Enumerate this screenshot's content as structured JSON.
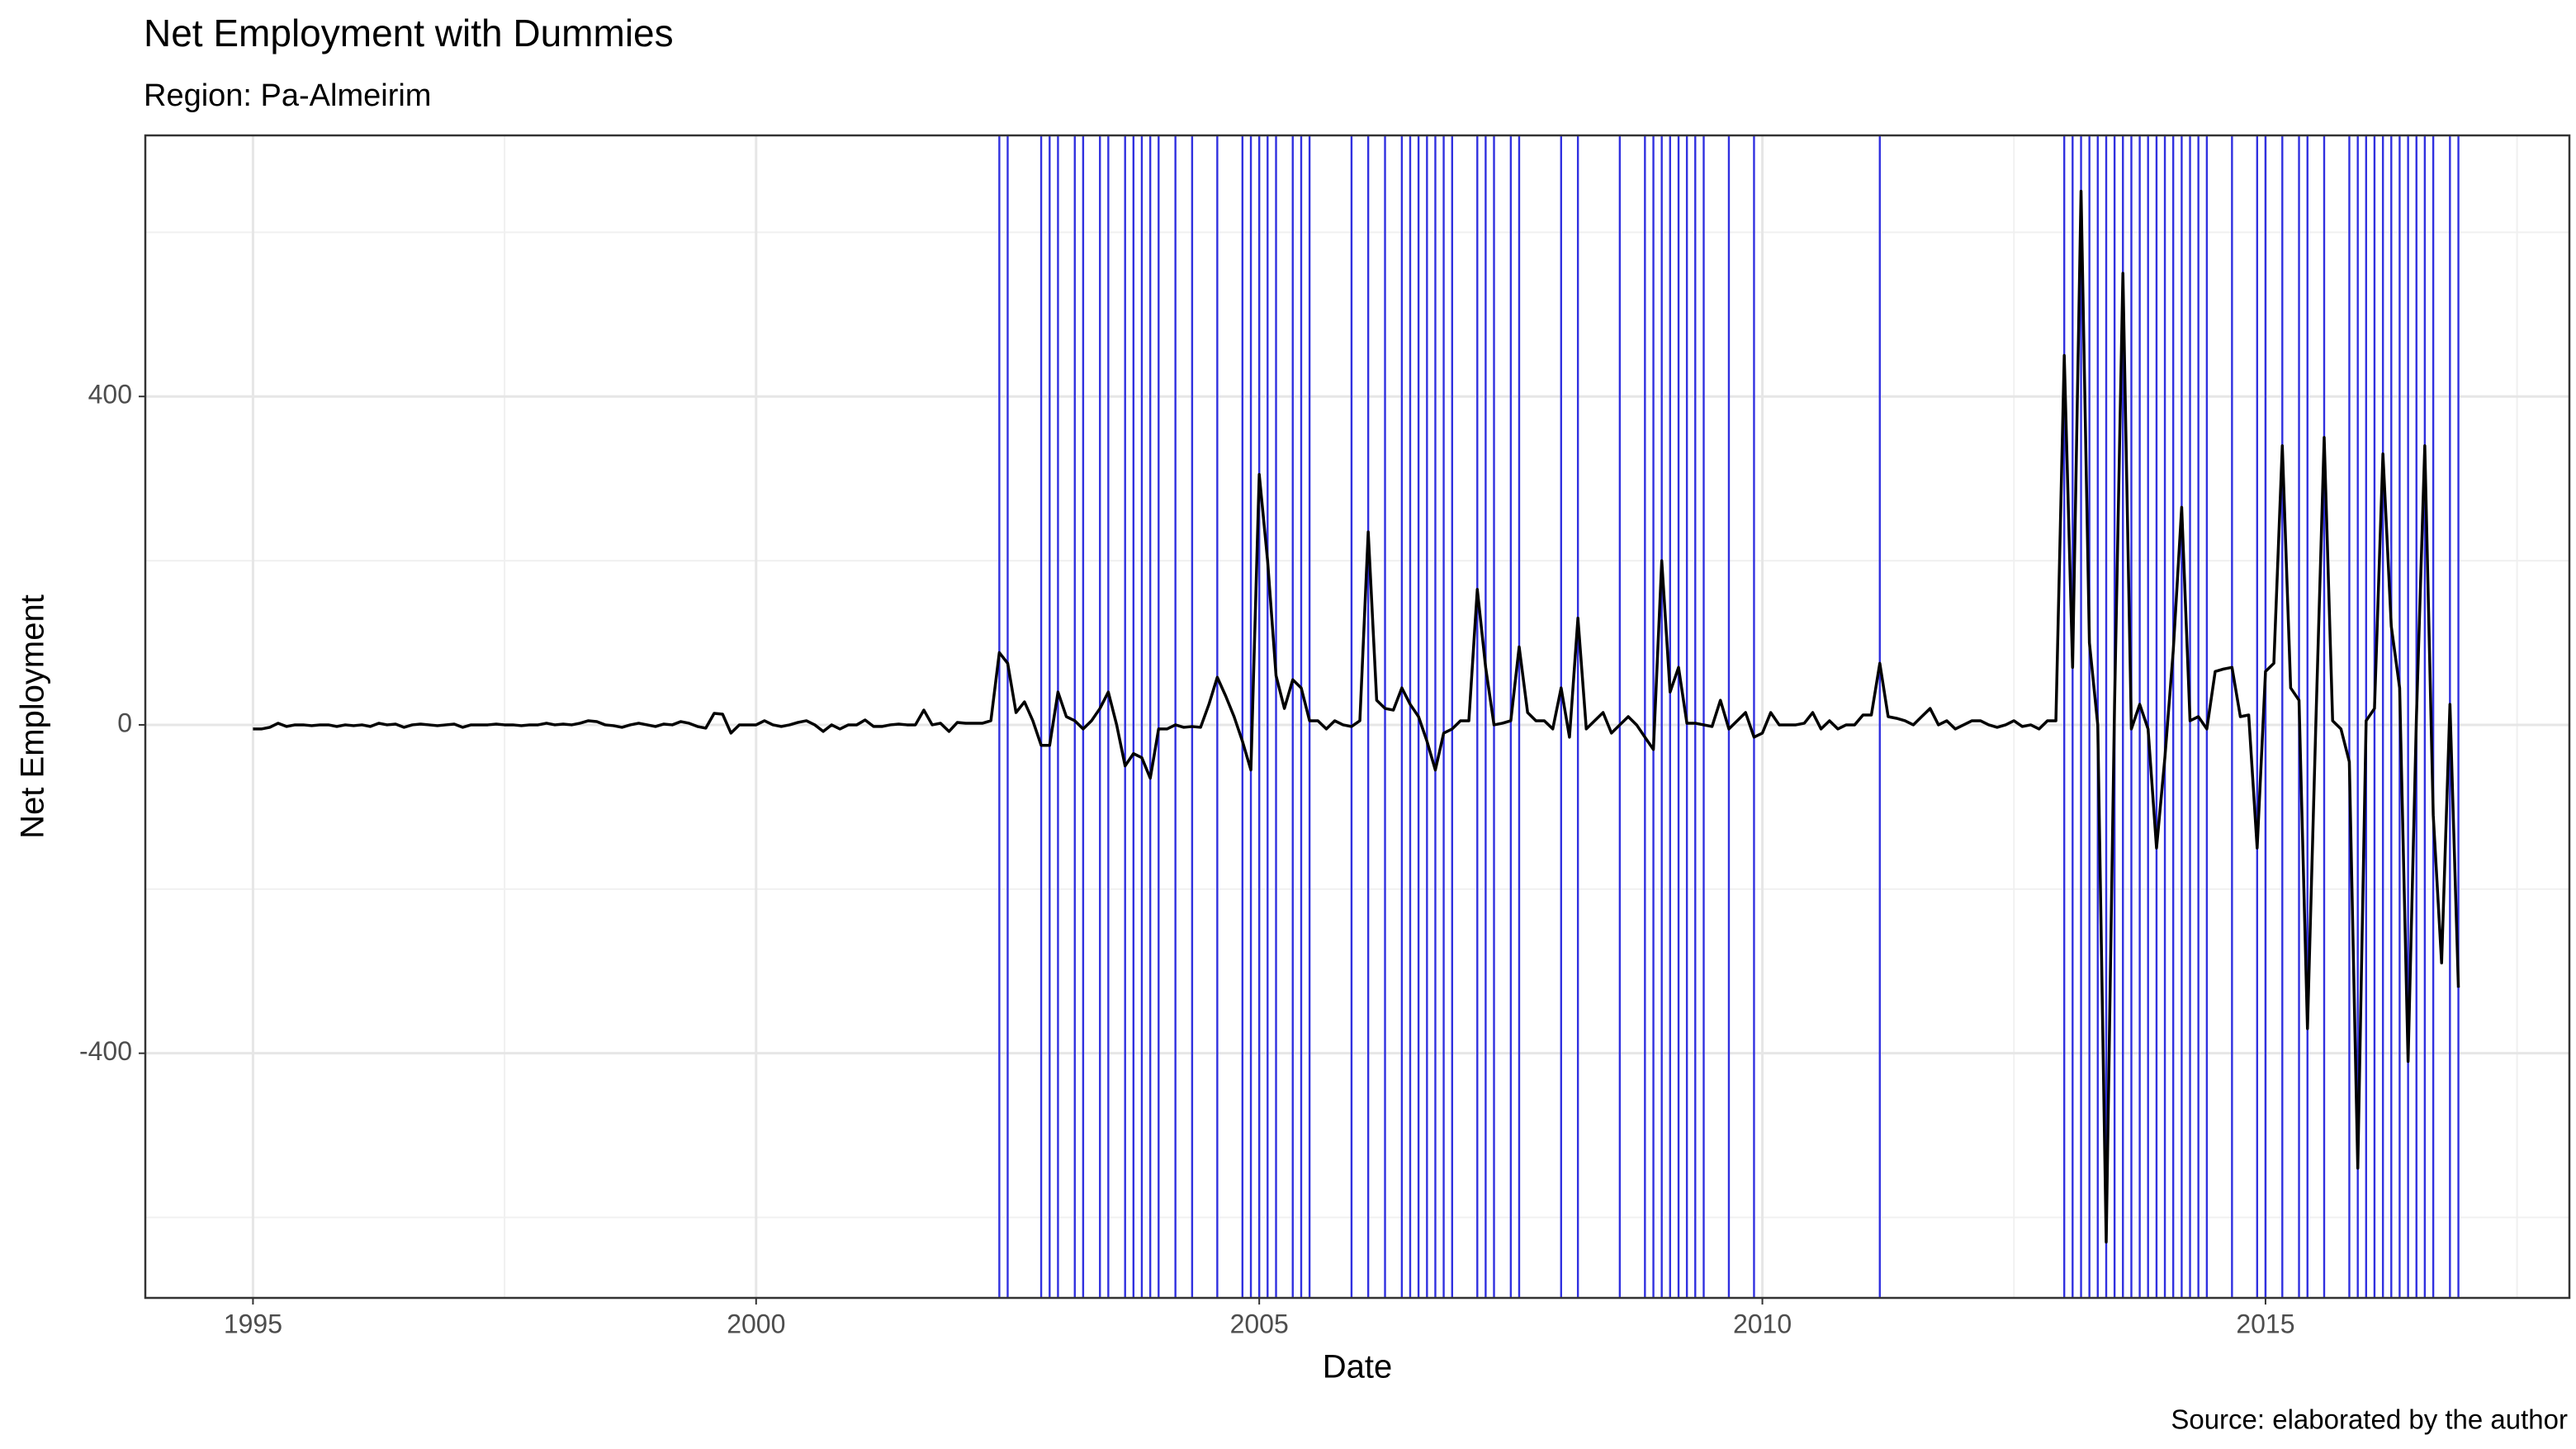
{
  "chart_data": {
    "type": "line",
    "title": "Net Employment with Dummies",
    "subtitle": "Region: Pa-Almeirim",
    "x_label": "Date",
    "y_label": "Net Employment",
    "caption": "Source: elaborated by the author",
    "xlim": [
      1993.93,
      2018.02
    ],
    "xticks": [
      1995,
      2000,
      2005,
      2010,
      2015
    ],
    "xminor": [
      1997.5,
      2002.5,
      2007.5,
      2012.5,
      2017.5
    ],
    "ylim": [
      -698,
      718
    ],
    "yticks": [
      -400,
      0,
      400
    ],
    "yminor": [
      -600,
      -200,
      200,
      600
    ],
    "grid": true,
    "x": [
      1995,
      1995.083,
      1995.167,
      1995.25,
      1995.333,
      1995.417,
      1995.5,
      1995.583,
      1995.667,
      1995.75,
      1995.833,
      1995.917,
      1996,
      1996.083,
      1996.167,
      1996.25,
      1996.333,
      1996.417,
      1996.5,
      1996.583,
      1996.667,
      1996.75,
      1996.833,
      1996.917,
      1997,
      1997.083,
      1997.167,
      1997.25,
      1997.333,
      1997.417,
      1997.5,
      1997.583,
      1997.667,
      1997.75,
      1997.833,
      1997.917,
      1998,
      1998.083,
      1998.167,
      1998.25,
      1998.333,
      1998.417,
      1998.5,
      1998.583,
      1998.667,
      1998.75,
      1998.833,
      1998.917,
      1999,
      1999.083,
      1999.167,
      1999.25,
      1999.333,
      1999.417,
      1999.5,
      1999.583,
      1999.667,
      1999.75,
      1999.833,
      1999.917,
      2000,
      2000.083,
      2000.167,
      2000.25,
      2000.333,
      2000.417,
      2000.5,
      2000.583,
      2000.667,
      2000.75,
      2000.833,
      2000.917,
      2001,
      2001.083,
      2001.167,
      2001.25,
      2001.333,
      2001.417,
      2001.5,
      2001.583,
      2001.667,
      2001.75,
      2001.833,
      2001.917,
      2002,
      2002.083,
      2002.167,
      2002.25,
      2002.333,
      2002.417,
      2002.5,
      2002.583,
      2002.667,
      2002.75,
      2002.833,
      2002.917,
      2003,
      2003.083,
      2003.167,
      2003.25,
      2003.333,
      2003.417,
      2003.5,
      2003.583,
      2003.667,
      2003.75,
      2003.833,
      2003.917,
      2004,
      2004.083,
      2004.167,
      2004.25,
      2004.333,
      2004.417,
      2004.5,
      2004.583,
      2004.667,
      2004.75,
      2004.833,
      2004.917,
      2005,
      2005.083,
      2005.167,
      2005.25,
      2005.333,
      2005.417,
      2005.5,
      2005.583,
      2005.667,
      2005.75,
      2005.833,
      2005.917,
      2006,
      2006.083,
      2006.167,
      2006.25,
      2006.333,
      2006.417,
      2006.5,
      2006.583,
      2006.667,
      2006.75,
      2006.833,
      2006.917,
      2007,
      2007.083,
      2007.167,
      2007.25,
      2007.333,
      2007.417,
      2007.5,
      2007.583,
      2007.667,
      2007.75,
      2007.833,
      2007.917,
      2008,
      2008.083,
      2008.167,
      2008.25,
      2008.333,
      2008.417,
      2008.5,
      2008.583,
      2008.667,
      2008.75,
      2008.833,
      2008.917,
      2009,
      2009.083,
      2009.167,
      2009.25,
      2009.333,
      2009.417,
      2009.5,
      2009.583,
      2009.667,
      2009.75,
      2009.833,
      2009.917,
      2010,
      2010.083,
      2010.167,
      2010.25,
      2010.333,
      2010.417,
      2010.5,
      2010.583,
      2010.667,
      2010.75,
      2010.833,
      2010.917,
      2011,
      2011.083,
      2011.167,
      2011.25,
      2011.333,
      2011.417,
      2011.5,
      2011.583,
      2011.667,
      2011.75,
      2011.833,
      2011.917,
      2012,
      2012.083,
      2012.167,
      2012.25,
      2012.333,
      2012.417,
      2012.5,
      2012.583,
      2012.667,
      2012.75,
      2012.833,
      2012.917,
      2013,
      2013.083,
      2013.167,
      2013.25,
      2013.333,
      2013.417,
      2013.5,
      2013.583,
      2013.667,
      2013.75,
      2013.833,
      2013.917,
      2014,
      2014.083,
      2014.167,
      2014.25,
      2014.333,
      2014.417,
      2014.5,
      2014.583,
      2014.667,
      2014.75,
      2014.833,
      2014.917,
      2015,
      2015.083,
      2015.167,
      2015.25,
      2015.333,
      2015.417,
      2015.5,
      2015.583,
      2015.667,
      2015.75,
      2015.833,
      2015.917,
      2016,
      2016.083,
      2016.167,
      2016.25,
      2016.333,
      2016.417,
      2016.5,
      2016.583,
      2016.667,
      2016.75,
      2016.833,
      2016.917
    ],
    "series": [
      {
        "color": "#000000",
        "values": [
          -5,
          -5,
          -3,
          2,
          -2,
          0,
          0,
          -1,
          0,
          0,
          -2,
          0,
          -1,
          0,
          -2,
          2,
          0,
          1,
          -3,
          0,
          1,
          0,
          -1,
          0,
          1,
          -3,
          0,
          0,
          0,
          1,
          0,
          0,
          -1,
          0,
          0,
          2,
          0,
          1,
          0,
          2,
          5,
          4,
          0,
          -1,
          -3,
          0,
          2,
          0,
          -2,
          1,
          0,
          4,
          2,
          -2,
          -4,
          14,
          13,
          -10,
          0,
          0,
          0,
          5,
          0,
          -2,
          0,
          3,
          5,
          0,
          -8,
          0,
          -5,
          0,
          0,
          6,
          -2,
          -2,
          0,
          1,
          0,
          0,
          18,
          0,
          2,
          -8,
          3,
          2,
          2,
          2,
          5,
          88,
          75,
          15,
          28,
          5,
          -25,
          -25,
          40,
          10,
          5,
          -5,
          5,
          20,
          40,
          0,
          -50,
          -35,
          -40,
          -65,
          -5,
          -5,
          0,
          -3,
          -2,
          -3,
          25,
          58,
          35,
          10,
          -20,
          -55,
          305,
          200,
          60,
          20,
          55,
          45,
          5,
          5,
          -5,
          5,
          0,
          -2,
          5,
          235,
          30,
          20,
          18,
          45,
          25,
          10,
          -20,
          -55,
          -10,
          -5,
          5,
          5,
          165,
          70,
          0,
          2,
          5,
          95,
          15,
          5,
          5,
          -5,
          45,
          -15,
          130,
          -5,
          5,
          15,
          -10,
          0,
          10,
          0,
          -15,
          -30,
          200,
          40,
          70,
          2,
          2,
          0,
          -2,
          30,
          -5,
          5,
          15,
          -15,
          -10,
          15,
          0,
          0,
          0,
          2,
          15,
          -5,
          5,
          -5,
          0,
          0,
          12,
          12,
          75,
          10,
          8,
          5,
          0,
          10,
          20,
          0,
          5,
          -5,
          0,
          5,
          5,
          0,
          -3,
          0,
          5,
          -2,
          0,
          -5,
          5,
          5,
          450,
          70,
          650,
          100,
          0,
          -630,
          25,
          550,
          -5,
          25,
          -5,
          -150,
          -40,
          90,
          265,
          5,
          10,
          -5,
          65,
          68,
          70,
          10,
          12,
          -150,
          65,
          75,
          340,
          45,
          30,
          -370,
          0,
          350,
          5,
          -5,
          -45,
          -540,
          5,
          20,
          330,
          120,
          45,
          -410,
          10,
          340,
          -110,
          -290,
          25,
          -320
        ]
      }
    ],
    "vlines": {
      "color": "#3030e0",
      "x": [
        2002.417,
        2002.5,
        2002.833,
        2002.917,
        2003,
        2003.167,
        2003.25,
        2003.417,
        2003.5,
        2003.667,
        2003.75,
        2003.833,
        2003.917,
        2004,
        2004.167,
        2004.333,
        2004.583,
        2004.833,
        2004.917,
        2005,
        2005.083,
        2005.167,
        2005.333,
        2005.417,
        2005.5,
        2005.917,
        2006.083,
        2006.25,
        2006.417,
        2006.5,
        2006.583,
        2006.667,
        2006.75,
        2006.833,
        2006.917,
        2007.167,
        2007.25,
        2007.333,
        2007.5,
        2007.583,
        2008,
        2008.167,
        2008.583,
        2008.833,
        2008.917,
        2009,
        2009.083,
        2009.167,
        2009.25,
        2009.333,
        2009.417,
        2009.667,
        2009.917,
        2011.167,
        2013,
        2013.083,
        2013.167,
        2013.25,
        2013.333,
        2013.417,
        2013.5,
        2013.583,
        2013.667,
        2013.75,
        2013.833,
        2013.917,
        2014,
        2014.083,
        2014.167,
        2014.25,
        2014.333,
        2014.417,
        2014.667,
        2014.917,
        2015,
        2015.167,
        2015.333,
        2015.417,
        2015.583,
        2015.833,
        2015.917,
        2016,
        2016.083,
        2016.167,
        2016.25,
        2016.333,
        2016.417,
        2016.5,
        2016.583,
        2016.667,
        2016.833,
        2016.917
      ]
    }
  }
}
